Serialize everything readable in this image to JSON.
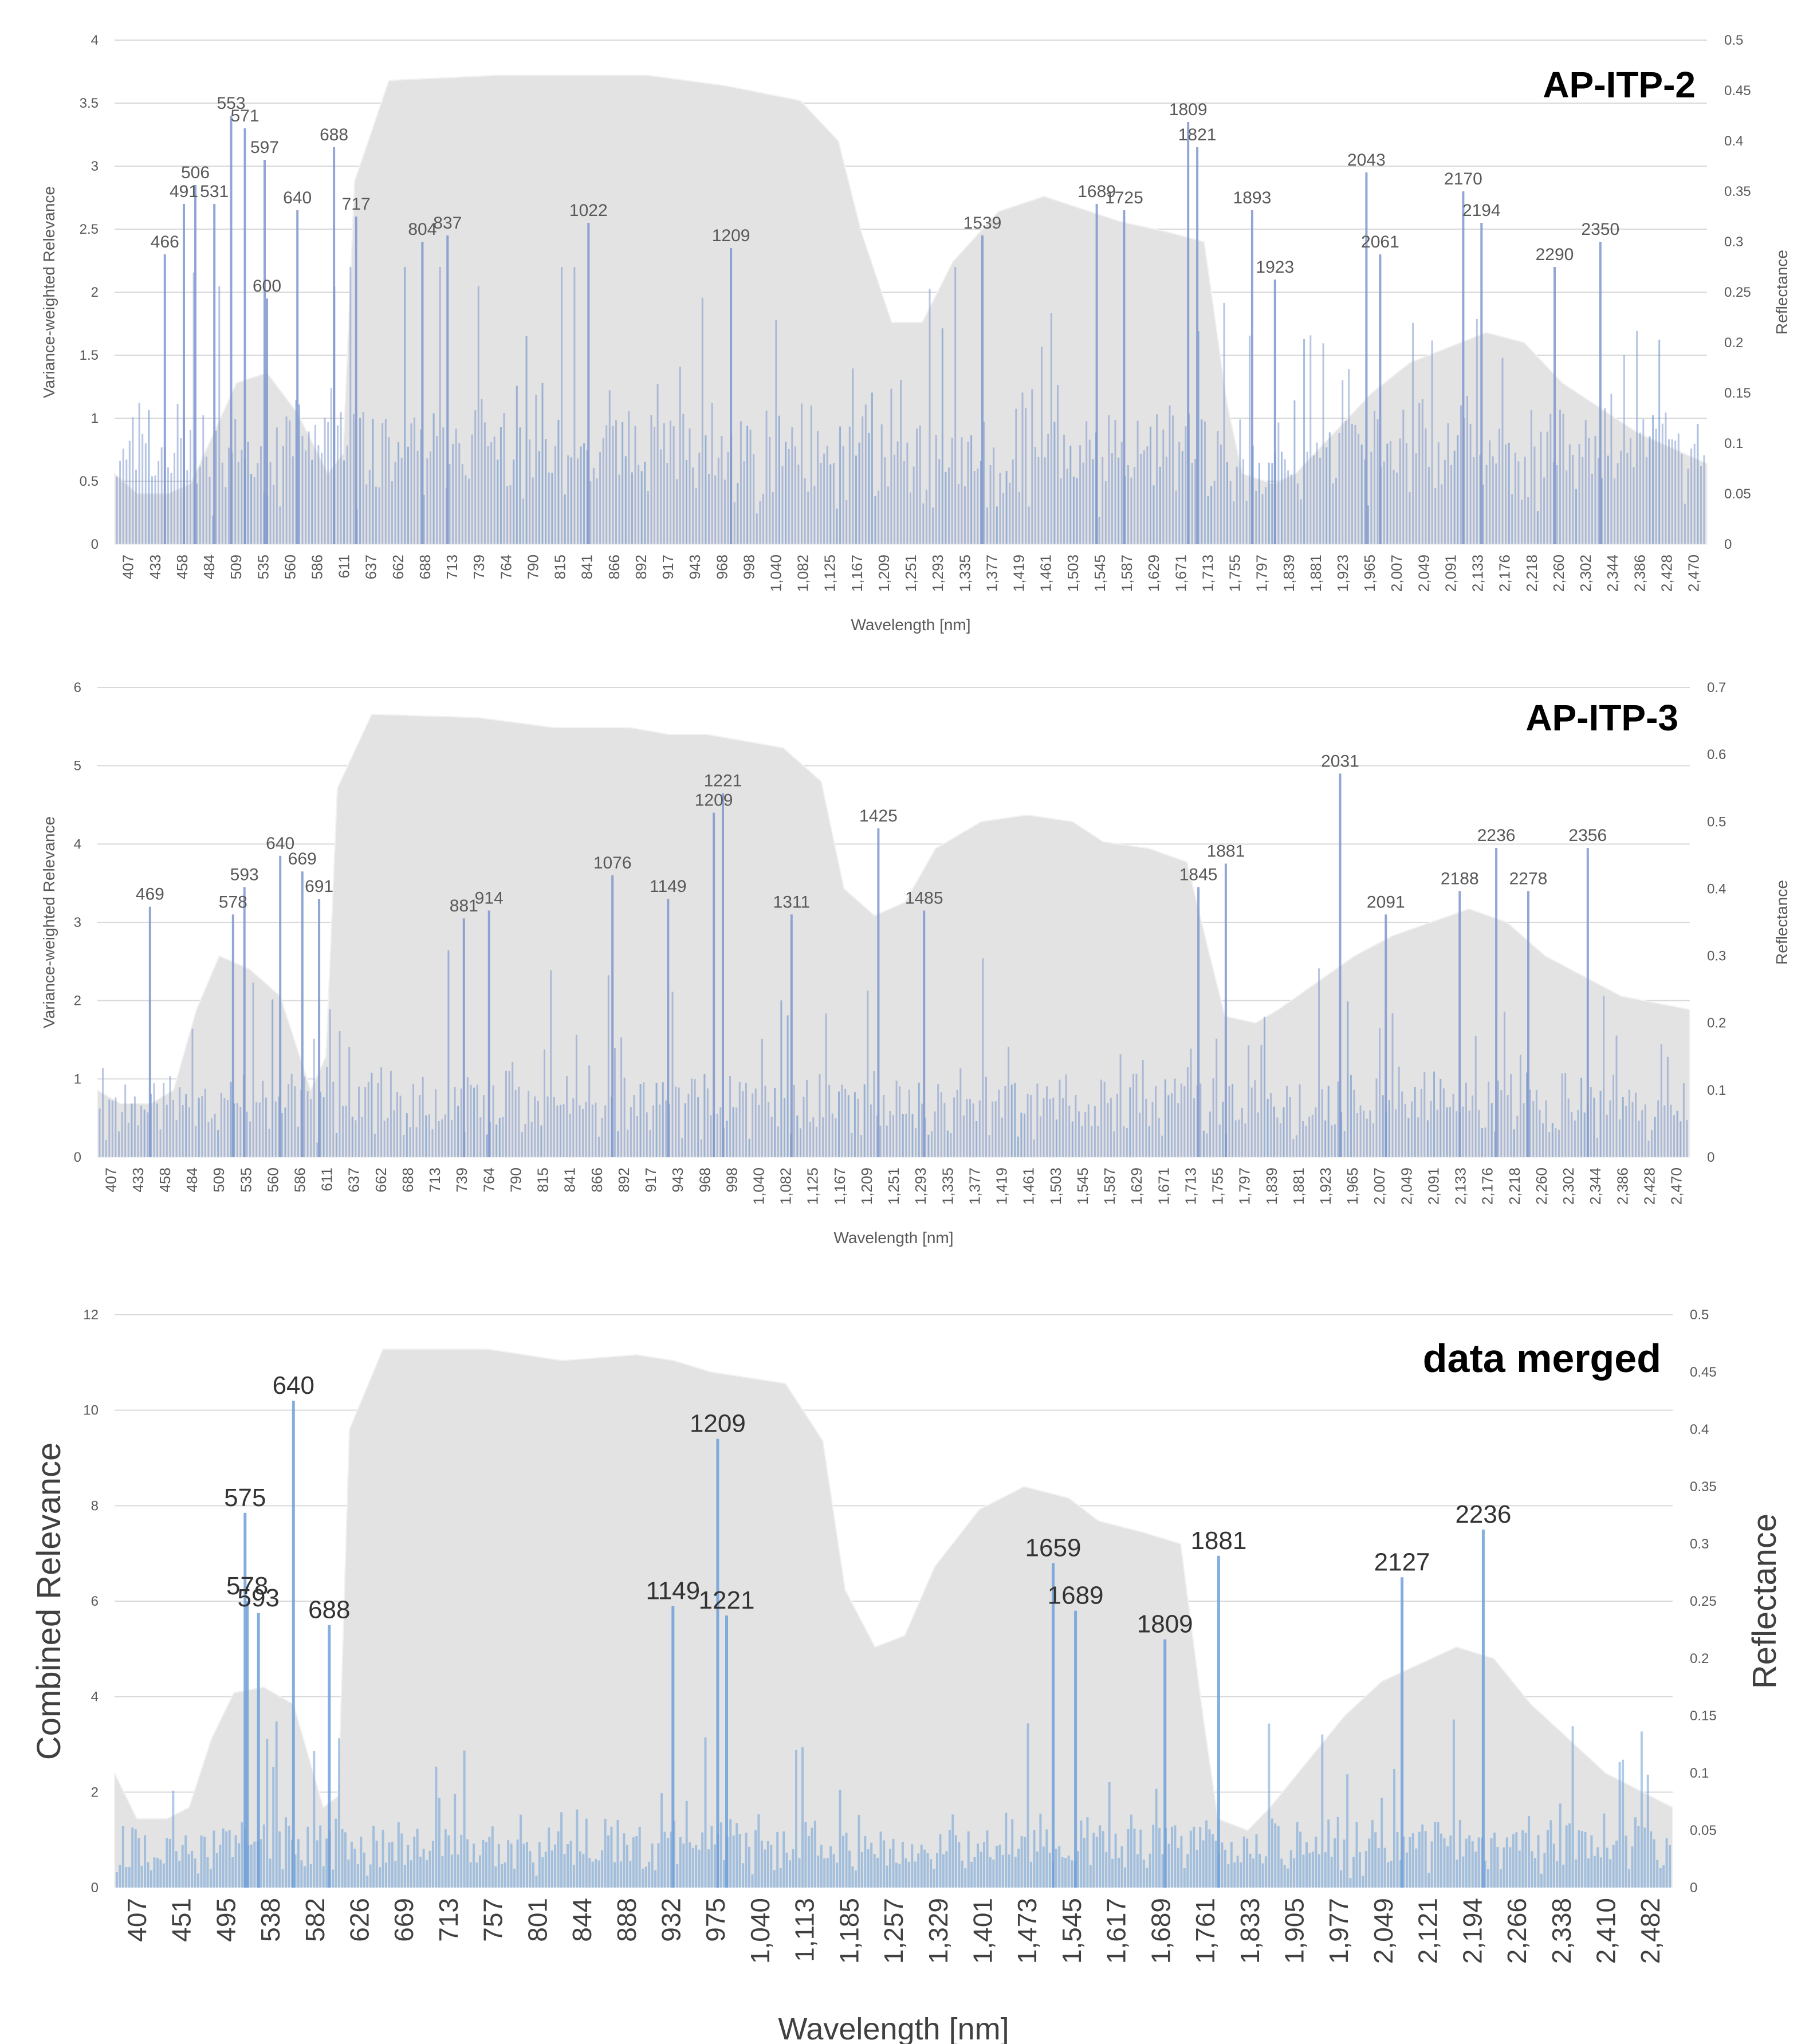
{
  "colors": {
    "bar": "#7e97cc",
    "bar_dark": "#5a86c9",
    "bar_merged": "#6ea0d8",
    "reflectance_fill": "#e3e3e3",
    "grid": "#d9d9d9",
    "text": "#595959",
    "title": "#000000"
  },
  "chart_data": [
    {
      "type": "bar",
      "title": "AP-ITP-2",
      "xlabel": "Wavelength [nm]",
      "ylabel": "Variance-weighted Relevance",
      "y2label": "Reflectance",
      "ylim": [
        0,
        4
      ],
      "yticks": [
        "0",
        "0.5",
        "1",
        "1.5",
        "2",
        "2.5",
        "3",
        "3.5",
        "4"
      ],
      "y2lim": [
        0,
        0.5
      ],
      "y2ticks": [
        "0",
        "0.05",
        "0.1",
        "0.15",
        "0.2",
        "0.25",
        "0.3",
        "0.35",
        "0.4",
        "0.45",
        "0.5"
      ],
      "xlim": [
        400,
        2490
      ],
      "xticks": [
        "407",
        "433",
        "458",
        "484",
        "509",
        "535",
        "560",
        "586",
        "611",
        "637",
        "662",
        "688",
        "713",
        "739",
        "764",
        "790",
        "815",
        "841",
        "866",
        "892",
        "917",
        "943",
        "968",
        "998",
        "1,040",
        "1,082",
        "1,125",
        "1,167",
        "1,209",
        "1,251",
        "1,293",
        "1,335",
        "1,377",
        "1,419",
        "1,461",
        "1,503",
        "1,545",
        "1,587",
        "1,629",
        "1,671",
        "1,713",
        "1,755",
        "1,797",
        "1,839",
        "1,881",
        "1,923",
        "1,965",
        "2,007",
        "2,049",
        "2,091",
        "2,133",
        "2,176",
        "2,218",
        "2,260",
        "2,302",
        "2,344",
        "2,386",
        "2,428",
        "2,470"
      ],
      "reflectance": {
        "x": [
          400,
          430,
          470,
          500,
          530,
          560,
          600,
          640,
          680,
          700,
          715,
          760,
          900,
          1000,
          1100,
          1150,
          1200,
          1300,
          1350,
          1380,
          1420,
          1460,
          1500,
          1560,
          1620,
          1680,
          1720,
          1780,
          1830,
          1860,
          1880,
          1920,
          1950,
          2000,
          2050,
          2100,
          2200,
          2250,
          2300,
          2400,
          2490
        ],
        "y": [
          0.07,
          0.05,
          0.05,
          0.06,
          0.11,
          0.16,
          0.17,
          0.13,
          0.07,
          0.09,
          0.36,
          0.46,
          0.465,
          0.465,
          0.465,
          0.46,
          0.455,
          0.44,
          0.4,
          0.31,
          0.22,
          0.22,
          0.28,
          0.33,
          0.345,
          0.33,
          0.32,
          0.31,
          0.3,
          0.14,
          0.07,
          0.06,
          0.07,
          0.11,
          0.15,
          0.18,
          0.21,
          0.2,
          0.16,
          0.11,
          0.08
        ]
      },
      "labeled_peaks": [
        {
          "x": 466,
          "y": 2.3,
          "label": "466"
        },
        {
          "x": 491,
          "y": 2.7,
          "label": "491"
        },
        {
          "x": 506,
          "y": 2.85,
          "label": "506"
        },
        {
          "x": 531,
          "y": 2.7,
          "label": "531"
        },
        {
          "x": 553,
          "y": 3.4,
          "label": "553"
        },
        {
          "x": 571,
          "y": 3.3,
          "label": "571"
        },
        {
          "x": 597,
          "y": 3.05,
          "label": "597"
        },
        {
          "x": 600,
          "y": 1.95,
          "label": "600"
        },
        {
          "x": 640,
          "y": 2.65,
          "label": "640"
        },
        {
          "x": 688,
          "y": 3.15,
          "label": "688"
        },
        {
          "x": 717,
          "y": 2.6,
          "label": "717"
        },
        {
          "x": 804,
          "y": 2.4,
          "label": "804"
        },
        {
          "x": 837,
          "y": 2.45,
          "label": "837"
        },
        {
          "x": 1022,
          "y": 2.55,
          "label": "1022"
        },
        {
          "x": 1209,
          "y": 2.35,
          "label": "1209"
        },
        {
          "x": 1539,
          "y": 2.45,
          "label": "1539"
        },
        {
          "x": 1689,
          "y": 2.7,
          "label": "1689"
        },
        {
          "x": 1725,
          "y": 2.65,
          "label": "1725"
        },
        {
          "x": 1809,
          "y": 3.35,
          "label": "1809"
        },
        {
          "x": 1821,
          "y": 3.15,
          "label": "1821"
        },
        {
          "x": 1893,
          "y": 2.65,
          "label": "1893"
        },
        {
          "x": 1923,
          "y": 2.1,
          "label": "1923"
        },
        {
          "x": 2043,
          "y": 2.95,
          "label": "2043"
        },
        {
          "x": 2061,
          "y": 2.3,
          "label": "2061"
        },
        {
          "x": 2170,
          "y": 2.8,
          "label": "2170"
        },
        {
          "x": 2194,
          "y": 2.55,
          "label": "2194"
        },
        {
          "x": 2290,
          "y": 2.2,
          "label": "2290"
        },
        {
          "x": 2350,
          "y": 2.4,
          "label": "2350"
        }
      ],
      "bar_seed": 11,
      "bar_base": 0.55,
      "bar_spread": 1.3
    },
    {
      "type": "bar",
      "title": "AP-ITP-3",
      "xlabel": "Wavelength [nm]",
      "ylabel": "Variance-weighted Relevance",
      "y2label": "Reflectance",
      "ylim": [
        0,
        6
      ],
      "yticks": [
        "0",
        "1",
        "2",
        "3",
        "4",
        "5",
        "6"
      ],
      "y2lim": [
        0,
        0.7
      ],
      "y2ticks": [
        "0",
        "0.1",
        "0.2",
        "0.3",
        "0.4",
        "0.5",
        "0.6",
        "0.7"
      ],
      "xlim": [
        400,
        2490
      ],
      "xticks": [
        "407",
        "433",
        "458",
        "484",
        "509",
        "535",
        "560",
        "586",
        "611",
        "637",
        "662",
        "688",
        "713",
        "739",
        "764",
        "790",
        "815",
        "841",
        "866",
        "892",
        "917",
        "943",
        "968",
        "998",
        "1,040",
        "1,082",
        "1,125",
        "1,167",
        "1,209",
        "1,251",
        "1,293",
        "1,335",
        "1,377",
        "1,419",
        "1,461",
        "1,503",
        "1,545",
        "1,587",
        "1,629",
        "1,671",
        "1,713",
        "1,755",
        "1,797",
        "1,839",
        "1,881",
        "1,923",
        "1,965",
        "2,007",
        "2,049",
        "2,091",
        "2,133",
        "2,176",
        "2,218",
        "2,260",
        "2,302",
        "2,344",
        "2,386",
        "2,428",
        "2,470"
      ],
      "reflectance": {
        "x": [
          400,
          430,
          470,
          500,
          530,
          560,
          600,
          640,
          680,
          700,
          715,
          760,
          900,
          1000,
          1100,
          1150,
          1200,
          1300,
          1350,
          1380,
          1420,
          1460,
          1500,
          1560,
          1620,
          1680,
          1720,
          1780,
          1830,
          1860,
          1880,
          1920,
          1950,
          2000,
          2050,
          2100,
          2200,
          2250,
          2300,
          2400,
          2490
        ],
        "y": [
          0.1,
          0.08,
          0.08,
          0.1,
          0.22,
          0.3,
          0.28,
          0.24,
          0.1,
          0.15,
          0.55,
          0.66,
          0.655,
          0.64,
          0.64,
          0.63,
          0.63,
          0.61,
          0.56,
          0.4,
          0.36,
          0.38,
          0.46,
          0.5,
          0.51,
          0.5,
          0.47,
          0.46,
          0.44,
          0.3,
          0.21,
          0.2,
          0.22,
          0.26,
          0.3,
          0.33,
          0.37,
          0.35,
          0.3,
          0.24,
          0.22
        ]
      },
      "labeled_peaks": [
        {
          "x": 469,
          "y": 3.2,
          "label": "469"
        },
        {
          "x": 578,
          "y": 3.1,
          "label": "578"
        },
        {
          "x": 593,
          "y": 3.45,
          "label": "593"
        },
        {
          "x": 640,
          "y": 3.85,
          "label": "640"
        },
        {
          "x": 669,
          "y": 3.65,
          "label": "669"
        },
        {
          "x": 691,
          "y": 3.3,
          "label": "691"
        },
        {
          "x": 881,
          "y": 3.05,
          "label": "881"
        },
        {
          "x": 914,
          "y": 3.15,
          "label": "914"
        },
        {
          "x": 1076,
          "y": 3.6,
          "label": "1076"
        },
        {
          "x": 1149,
          "y": 3.3,
          "label": "1149"
        },
        {
          "x": 1209,
          "y": 4.4,
          "label": "1209"
        },
        {
          "x": 1221,
          "y": 4.65,
          "label": "1221"
        },
        {
          "x": 1311,
          "y": 3.1,
          "label": "1311"
        },
        {
          "x": 1425,
          "y": 4.2,
          "label": "1425"
        },
        {
          "x": 1485,
          "y": 3.15,
          "label": "1485"
        },
        {
          "x": 1845,
          "y": 3.45,
          "label": "1845"
        },
        {
          "x": 1881,
          "y": 3.75,
          "label": "1881"
        },
        {
          "x": 2031,
          "y": 4.9,
          "label": "2031"
        },
        {
          "x": 2091,
          "y": 3.1,
          "label": "2091"
        },
        {
          "x": 2188,
          "y": 3.4,
          "label": "2188"
        },
        {
          "x": 2236,
          "y": 3.95,
          "label": "2236"
        },
        {
          "x": 2278,
          "y": 3.4,
          "label": "2278"
        },
        {
          "x": 2356,
          "y": 3.95,
          "label": "2356"
        }
      ],
      "bar_seed": 27,
      "bar_base": 0.4,
      "bar_spread": 1.6
    },
    {
      "type": "bar",
      "title": "data merged",
      "xlabel": "Wavelength [nm]",
      "ylabel": "Combined Relevance",
      "y2label": "Reflectance",
      "ylim": [
        0,
        12
      ],
      "yticks": [
        "0",
        "2",
        "4",
        "6",
        "8",
        "10",
        "12"
      ],
      "y2lim": [
        0,
        0.5
      ],
      "y2ticks": [
        "0",
        "0.05",
        "0.1",
        "0.15",
        "0.2",
        "0.25",
        "0.3",
        "0.35",
        "0.4",
        "0.45",
        "0.5"
      ],
      "xlim": [
        400,
        2490
      ],
      "xticks": [
        "407",
        "451",
        "495",
        "538",
        "582",
        "626",
        "669",
        "713",
        "757",
        "801",
        "844",
        "888",
        "932",
        "975",
        "1,040",
        "1,113",
        "1,185",
        "1,257",
        "1,329",
        "1,401",
        "1,473",
        "1,545",
        "1,617",
        "1,689",
        "1,761",
        "1,833",
        "1,905",
        "1,977",
        "2,049",
        "2,121",
        "2,194",
        "2,266",
        "2,338",
        "2,410",
        "2,482"
      ],
      "reflectance": {
        "x": [
          400,
          430,
          470,
          500,
          530,
          560,
          600,
          640,
          680,
          700,
          715,
          760,
          900,
          1000,
          1100,
          1150,
          1200,
          1300,
          1350,
          1380,
          1420,
          1460,
          1500,
          1560,
          1620,
          1680,
          1720,
          1780,
          1830,
          1860,
          1880,
          1920,
          1950,
          2000,
          2050,
          2100,
          2200,
          2250,
          2300,
          2400,
          2490
        ],
        "y": [
          0.1,
          0.06,
          0.06,
          0.07,
          0.13,
          0.17,
          0.175,
          0.16,
          0.07,
          0.08,
          0.4,
          0.47,
          0.47,
          0.46,
          0.465,
          0.46,
          0.45,
          0.44,
          0.39,
          0.26,
          0.21,
          0.22,
          0.28,
          0.33,
          0.35,
          0.34,
          0.32,
          0.31,
          0.3,
          0.15,
          0.06,
          0.05,
          0.07,
          0.11,
          0.15,
          0.18,
          0.21,
          0.2,
          0.16,
          0.1,
          0.07
        ]
      },
      "labeled_peaks": [
        {
          "x": 575,
          "y": 7.85,
          "label": "575"
        },
        {
          "x": 578,
          "y": 6.0,
          "label": "578"
        },
        {
          "x": 593,
          "y": 5.75,
          "label": "593"
        },
        {
          "x": 640,
          "y": 10.2,
          "label": "640"
        },
        {
          "x": 688,
          "y": 5.5,
          "label": "688"
        },
        {
          "x": 1149,
          "y": 5.9,
          "label": "1149"
        },
        {
          "x": 1209,
          "y": 9.4,
          "label": "1209"
        },
        {
          "x": 1221,
          "y": 5.7,
          "label": "1221"
        },
        {
          "x": 1659,
          "y": 6.8,
          "label": "1659"
        },
        {
          "x": 1689,
          "y": 5.8,
          "label": "1689"
        },
        {
          "x": 1809,
          "y": 5.2,
          "label": "1809"
        },
        {
          "x": 1881,
          "y": 6.95,
          "label": "1881"
        },
        {
          "x": 2127,
          "y": 6.5,
          "label": "2127"
        },
        {
          "x": 2236,
          "y": 7.5,
          "label": "2236"
        }
      ],
      "bar_seed": 53,
      "bar_base": 0.5,
      "bar_spread": 2.2
    }
  ]
}
